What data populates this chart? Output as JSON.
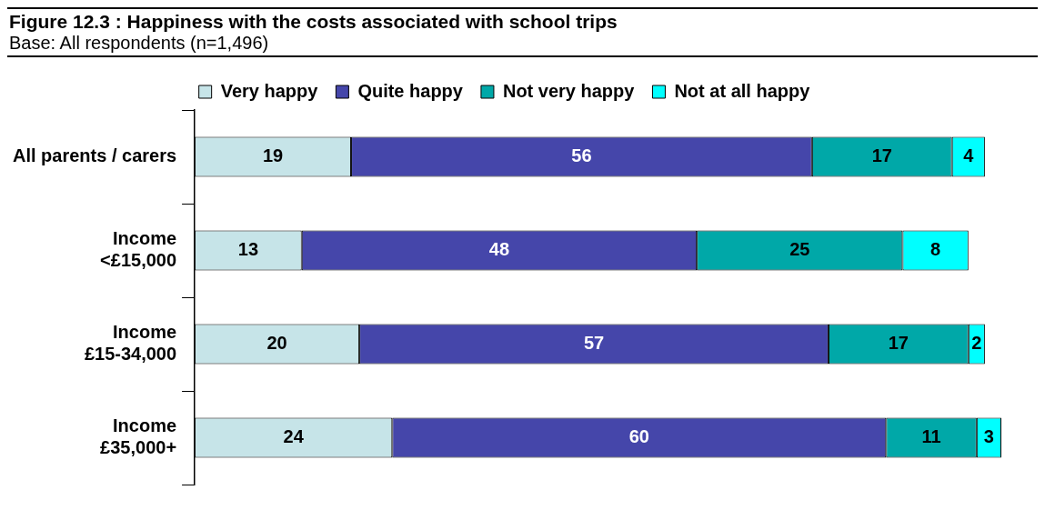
{
  "chart_data": {
    "type": "bar",
    "orientation": "horizontal",
    "stacked": true,
    "title": "Figure 12.3 : Happiness with the costs associated with school trips",
    "subtitle": "Base: All respondents (n=1,496)",
    "categories": [
      "All parents / carers",
      "Income\n<£15,000",
      "Income\n£15-34,000",
      "Income\n£35,000+"
    ],
    "series": [
      {
        "name": "Very happy",
        "color": "#c6e4e8",
        "values": [
          19,
          13,
          20,
          24
        ]
      },
      {
        "name": "Quite happy",
        "color": "#4546aa",
        "values": [
          56,
          48,
          57,
          60
        ]
      },
      {
        "name": "Not very happy",
        "color": "#00a8a8",
        "values": [
          17,
          25,
          17,
          11
        ]
      },
      {
        "name": "Not at all happy",
        "color": "#00ffff",
        "values": [
          4,
          8,
          2,
          3
        ]
      }
    ],
    "data_labels": true,
    "legend": "top",
    "grid": false
  }
}
